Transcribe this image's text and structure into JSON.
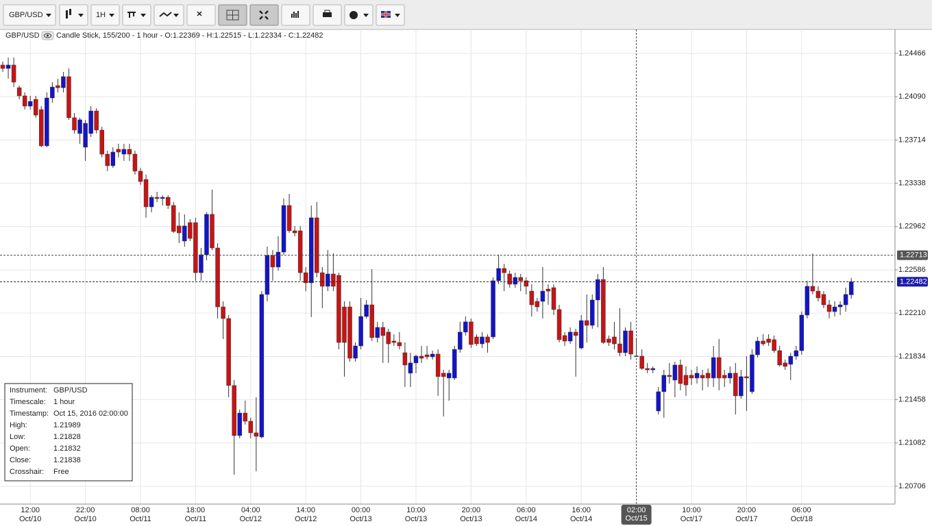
{
  "toolbar": {
    "symbol": "GBP/USD",
    "interval": "1H"
  },
  "header": {
    "symbol": "GBP/USD",
    "info": "Candle Stick, 155/200 - 1 hour - O:1.22369 - H:1.22515 - L:1.22334 - C:1.22482"
  },
  "info_box": {
    "labels": [
      "Instrument:",
      "Timescale:",
      "Timestamp:",
      "High:",
      "Low:",
      "Open:",
      "Close:",
      "Crosshair:"
    ],
    "instrument": "GBP/USD",
    "timescale": "1 hour",
    "timestamp": "Oct 15, 2016 02:00:00",
    "crosshair": "Free"
  },
  "chart_data": {
    "type": "candlestick",
    "categories": [
      null,
      null,
      null,
      null,
      null,
      "12:00",
      null,
      null,
      null,
      null,
      null,
      null,
      null,
      null,
      null,
      "22:00",
      null,
      null,
      null,
      null,
      null,
      null,
      null,
      null,
      null,
      "08:00",
      null,
      null,
      null,
      null,
      null,
      null,
      null,
      null,
      null,
      "18:00",
      null,
      null,
      null,
      null,
      null,
      null,
      null,
      null,
      null,
      "04:00",
      null,
      null,
      null,
      null,
      null,
      null,
      null,
      null,
      null,
      "14:00",
      null,
      null,
      null,
      null,
      null,
      null,
      null,
      null,
      null,
      "00:00",
      null,
      null,
      null,
      null,
      null,
      null,
      null,
      null,
      null,
      "10:00",
      null,
      null,
      null,
      null,
      null,
      null,
      null,
      null,
      null,
      "20:00",
      null,
      null,
      null,
      null,
      null,
      null,
      null,
      null,
      null,
      "06:00",
      null,
      null,
      null,
      null,
      null,
      null,
      null,
      null,
      null,
      "16:00",
      null,
      null,
      null,
      null,
      null,
      null,
      null,
      null,
      null,
      "02:00",
      null,
      null,
      null,
      null,
      null,
      null,
      null,
      null,
      null,
      "10:00",
      null,
      null,
      null,
      null,
      null,
      null,
      null,
      null,
      null,
      "20:00",
      null,
      null,
      null,
      null,
      null,
      null,
      null,
      null,
      null,
      "06:00",
      null,
      null,
      null,
      null,
      null,
      null,
      null,
      null,
      null
    ],
    "dates": [
      null,
      null,
      null,
      null,
      null,
      "Oct/10",
      null,
      null,
      null,
      null,
      null,
      null,
      null,
      null,
      null,
      "Oct/10",
      null,
      null,
      null,
      null,
      null,
      null,
      null,
      null,
      null,
      "Oct/11",
      null,
      null,
      null,
      null,
      null,
      null,
      null,
      null,
      null,
      "Oct/11",
      null,
      null,
      null,
      null,
      null,
      null,
      null,
      null,
      null,
      "Oct/12",
      null,
      null,
      null,
      null,
      null,
      null,
      null,
      null,
      null,
      "Oct/12",
      null,
      null,
      null,
      null,
      null,
      null,
      null,
      null,
      null,
      "Oct/13",
      null,
      null,
      null,
      null,
      null,
      null,
      null,
      null,
      null,
      "Oct/13",
      null,
      null,
      null,
      null,
      null,
      null,
      null,
      null,
      null,
      "Oct/13",
      null,
      null,
      null,
      null,
      null,
      null,
      null,
      null,
      null,
      "Oct/14",
      null,
      null,
      null,
      null,
      null,
      null,
      null,
      null,
      null,
      "Oct/14",
      null,
      null,
      null,
      null,
      null,
      null,
      null,
      null,
      null,
      "Oct/15",
      null,
      null,
      null,
      null,
      null,
      null,
      null,
      null,
      null,
      "Oct/17",
      null,
      null,
      null,
      null,
      null,
      null,
      null,
      null,
      null,
      "Oct/17",
      null,
      null,
      null,
      null,
      null,
      null,
      null,
      null,
      null,
      "Oct/18",
      null,
      null,
      null,
      null,
      null,
      null,
      null,
      null,
      null
    ],
    "open": [
      1.24365,
      1.24335,
      1.24365,
      1.24168,
      1.24097,
      1.24008,
      1.24067,
      1.23978,
      1.23663,
      1.24079,
      1.24186,
      1.24168,
      1.24264,
      1.23907,
      1.2377,
      1.23651,
      1.2377,
      1.23966,
      1.238,
      1.23591,
      1.2349,
      1.23633,
      1.23591,
      1.23633,
      1.23591,
      1.23443,
      1.23371,
      1.23133,
      1.23216,
      1.23205,
      1.23216,
      1.23145,
      1.22967,
      1.22836,
      1.22996,
      1.22996,
      1.22561,
      1.22717,
      1.23068,
      1.22776,
      1.22264,
      1.22163,
      1.21581,
      1.21146,
      1.21342,
      1.21271,
      1.2117,
      1.21134,
      1.22372,
      1.22711,
      1.2261,
      1.2274,
      1.23145,
      1.22925,
      1.22925,
      1.22561,
      1.22473,
      1.23038,
      1.22561,
      1.22443,
      1.2255,
      1.22538,
      1.22264,
      1.22264,
      1.21818,
      1.21925,
      1.22181,
      1.22282,
      1.21997,
      1.22086,
      1.22045,
      1.21967,
      1.21955,
      1.21866,
      1.21688,
      1.21777,
      1.21836,
      1.21848,
      1.2183,
      1.21854,
      1.21688,
      1.21646,
      1.21646,
      1.21895,
      1.22045,
      1.22134,
      1.22003,
      1.21943,
      1.22003,
      1.22003,
      1.22491,
      1.22598,
      1.2255,
      1.22461,
      1.2252,
      1.22491,
      1.22401,
      1.22312,
      1.22312,
      1.22419,
      1.22431,
      1.22241,
      1.22015,
      1.21967,
      1.22045,
      1.21907,
      1.22145,
      1.22104,
      1.22324,
      1.22502,
      1.21985,
      1.22003,
      1.21943,
      1.21866,
      1.22056,
      1.21832,
      1.21836,
      1.21729,
      1.21717,
      1.2136,
      1.21527,
      1.2167,
      1.21628,
      1.21759,
      1.2167,
      1.2167,
      1.21646,
      1.2167,
      1.21688,
      1.21646,
      1.21824,
      1.2167,
      1.21646,
      1.21688,
      1.21491,
      1.21658,
      1.21527,
      1.21848,
      1.21967,
      1.21985,
      1.21979,
      1.21884,
      1.21777,
      1.21765,
      1.21836,
      1.21884,
      1.22193,
      1.22443,
      1.22401,
      1.22372,
      1.22282,
      1.22223,
      1.22264,
      1.22282,
      1.22369
    ],
    "high": [
      1.24395,
      1.2443,
      1.2443,
      1.24186,
      1.24127,
      1.24097,
      1.24097,
      1.24008,
      1.24127,
      1.24216,
      1.24246,
      1.24305,
      1.24335,
      1.23948,
      1.23907,
      1.23889,
      1.24008,
      1.2399,
      1.23829,
      1.23621,
      1.23651,
      1.23681,
      1.23681,
      1.23681,
      1.23621,
      1.23472,
      1.23413,
      1.23234,
      1.23264,
      1.23234,
      1.23234,
      1.23175,
      1.23086,
      1.23068,
      1.23026,
      1.23038,
      1.22776,
      1.23086,
      1.23282,
      1.22818,
      1.22312,
      1.22193,
      1.21628,
      1.21372,
      1.21449,
      1.21301,
      1.21479,
      1.22401,
      1.22788,
      1.22758,
      1.22877,
      1.23205,
      1.23246,
      1.22967,
      1.22967,
      1.2261,
      1.23145,
      1.23175,
      1.2261,
      1.22758,
      1.22729,
      1.22561,
      1.22312,
      1.22312,
      1.21955,
      1.22342,
      1.22324,
      1.22592,
      1.22134,
      1.22134,
      1.22074,
      1.22026,
      1.22045,
      1.21955,
      1.21866,
      1.21848,
      1.21925,
      1.21925,
      1.21884,
      1.21895,
      1.21717,
      1.21717,
      1.21925,
      1.22134,
      1.22181,
      1.22163,
      1.22026,
      1.22045,
      1.22026,
      1.2252,
      1.22717,
      1.22639,
      1.2258,
      1.22561,
      1.2255,
      1.2252,
      1.22461,
      1.22342,
      1.2261,
      1.22461,
      1.22461,
      1.22282,
      1.22045,
      1.22086,
      1.22074,
      1.22193,
      1.22372,
      1.22372,
      1.2255,
      1.2261,
      1.22015,
      1.22134,
      1.22253,
      1.22086,
      1.22134,
      1.21989,
      1.21895,
      1.21777,
      1.21747,
      1.21568,
      1.21717,
      1.21777,
      1.21788,
      1.21806,
      1.21747,
      1.21717,
      1.21747,
      1.21717,
      1.21729,
      1.21925,
      1.21985,
      1.21717,
      1.21747,
      1.21777,
      1.21717,
      1.21836,
      1.21895,
      1.22003,
      1.22026,
      1.22026,
      1.22015,
      1.21925,
      1.21806,
      1.21866,
      1.21925,
      1.22223,
      1.22491,
      1.22729,
      1.22443,
      1.22401,
      1.22324,
      1.22312,
      1.22312,
      1.22431,
      1.22515
    ],
    "low": [
      1.24305,
      1.24246,
      1.24174,
      1.24067,
      1.23978,
      1.23978,
      1.23907,
      1.23651,
      1.23651,
      1.24038,
      1.24127,
      1.24127,
      1.23889,
      1.2377,
      1.23681,
      1.23532,
      1.2374,
      1.2377,
      1.23562,
      1.23443,
      1.23472,
      1.23562,
      1.23532,
      1.23532,
      1.23413,
      1.23324,
      1.23038,
      1.23086,
      1.23175,
      1.23145,
      1.23115,
      1.22907,
      1.22818,
      1.22788,
      1.22836,
      1.22491,
      1.22491,
      1.22669,
      1.22758,
      1.22163,
      1.21985,
      1.21479,
      1.20807,
      1.21122,
      1.21241,
      1.21122,
      1.20836,
      1.21122,
      1.22312,
      1.22491,
      1.2258,
      1.22717,
      1.22907,
      1.22877,
      1.22491,
      1.22401,
      1.22175,
      1.2252,
      1.22253,
      1.22401,
      1.22401,
      1.21895,
      1.21658,
      1.21788,
      1.21788,
      1.21895,
      1.22163,
      1.21967,
      1.21955,
      1.21777,
      1.21777,
      1.21925,
      1.21895,
      1.21568,
      1.21568,
      1.21688,
      1.21777,
      1.21806,
      1.21806,
      1.21491,
      1.21312,
      1.21449,
      1.21628,
      1.21866,
      1.22015,
      1.21907,
      1.21925,
      1.21907,
      1.21866,
      1.21985,
      1.22461,
      1.22401,
      1.22431,
      1.22431,
      1.22401,
      1.22372,
      1.22181,
      1.22223,
      1.22163,
      1.22282,
      1.22193,
      1.21955,
      1.21925,
      1.21943,
      1.21658,
      1.21895,
      1.21955,
      1.22074,
      1.22086,
      1.21943,
      1.21925,
      1.21895,
      1.21836,
      1.21836,
      1.21806,
      1.21828,
      1.21717,
      1.21688,
      1.21688,
      1.2133,
      1.21301,
      1.21598,
      1.21479,
      1.21539,
      1.21491,
      1.21586,
      1.21598,
      1.21539,
      1.21568,
      1.21568,
      1.21539,
      1.21568,
      1.21598,
      1.2133,
      1.21467,
      1.2136,
      1.21509,
      1.21824,
      1.21925,
      1.21925,
      1.21866,
      1.21747,
      1.21717,
      1.21628,
      1.21806,
      1.21848,
      1.22163,
      1.22372,
      1.22312,
      1.22253,
      1.22163,
      1.22181,
      1.22193,
      1.22223,
      1.22334
    ],
    "close": [
      1.24335,
      1.24365,
      1.24216,
      1.24097,
      1.24008,
      1.24049,
      1.2393,
      1.23663,
      1.24079,
      1.24174,
      1.24168,
      1.24264,
      1.23907,
      1.238,
      1.23889,
      1.23859,
      1.23966,
      1.238,
      1.23591,
      1.2349,
      1.23609,
      1.23609,
      1.23633,
      1.23591,
      1.23443,
      1.23353,
      1.23133,
      1.23216,
      1.23205,
      1.23216,
      1.23145,
      1.22919,
      1.22907,
      1.22967,
      1.22859,
      1.22561,
      1.22717,
      1.23068,
      1.22776,
      1.22264,
      1.22163,
      1.21581,
      1.21146,
      1.21342,
      1.21271,
      1.2117,
      1.2114,
      1.22372,
      1.22711,
      1.2261,
      1.2274,
      1.23145,
      1.22925,
      1.22907,
      1.22561,
      1.22473,
      1.23038,
      1.22561,
      1.22443,
      1.2255,
      1.22443,
      1.21955,
      1.21955,
      1.21818,
      1.21925,
      1.22181,
      1.22282,
      1.21997,
      1.22086,
      1.22015,
      1.21943,
      1.21955,
      1.21925,
      1.21759,
      1.21777,
      1.21836,
      1.21818,
      1.2183,
      1.21854,
      1.21658,
      1.21658,
      1.21688,
      1.21895,
      1.22045,
      1.22134,
      1.21937,
      1.21943,
      1.22003,
      1.21955,
      1.22491,
      1.22598,
      1.22561,
      1.22461,
      1.2252,
      1.22491,
      1.22443,
      1.22282,
      1.22264,
      1.22401,
      1.22401,
      1.22241,
      1.21979,
      1.21967,
      1.22045,
      1.22015,
      1.22145,
      1.22104,
      1.22324,
      1.22502,
      1.21955,
      1.21955,
      1.21943,
      1.21866,
      1.22056,
      1.21854,
      1.21838,
      1.21729,
      1.21717,
      1.21729,
      1.21527,
      1.2167,
      1.21658,
      1.21759,
      1.21598,
      1.21586,
      1.21646,
      1.21688,
      1.21646,
      1.21646,
      1.21824,
      1.21646,
      1.21646,
      1.21688,
      1.21491,
      1.21658,
      1.21646,
      1.21848,
      1.21967,
      1.21943,
      1.21955,
      1.21884,
      1.21759,
      1.21747,
      1.21836,
      1.21884,
      1.22193,
      1.22443,
      1.22401,
      1.22342,
      1.22282,
      1.22223,
      1.22264,
      1.22282,
      1.22372,
      1.22482
    ],
    "up_color": "#1414c8",
    "down_color": "#c81414",
    "ylim": [
      1.20551,
      1.24674
    ],
    "yticks": [
      1.20706,
      1.21082,
      1.21458,
      1.21834,
      {
        "value": 1.2221,
        "label": "1.22210"
      },
      1.22586,
      1.22962,
      1.23338,
      1.23714,
      {
        "value": 1.2409,
        "label": "1.24090"
      },
      1.24466
    ],
    "grid": true,
    "crosshair": {
      "index": 115,
      "price": 1.22713
    }
  }
}
